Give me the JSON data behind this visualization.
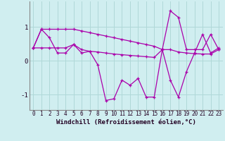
{
  "x": [
    0,
    1,
    2,
    3,
    4,
    5,
    6,
    7,
    8,
    9,
    10,
    11,
    12,
    13,
    14,
    15,
    16,
    17,
    18,
    19,
    20,
    21,
    22,
    23
  ],
  "line1": [
    0.38,
    0.38,
    0.38,
    0.38,
    0.38,
    0.48,
    0.33,
    0.28,
    0.26,
    0.23,
    0.2,
    0.18,
    0.16,
    0.14,
    0.12,
    0.1,
    0.33,
    0.33,
    0.26,
    0.23,
    0.21,
    0.2,
    0.2,
    0.33
  ],
  "line2": [
    0.38,
    0.93,
    0.68,
    0.23,
    0.23,
    0.48,
    0.23,
    0.28,
    -0.12,
    -1.17,
    -1.12,
    -0.57,
    -0.72,
    -0.52,
    -1.07,
    -1.07,
    0.33,
    -0.57,
    -1.07,
    -0.32,
    0.23,
    0.78,
    0.23,
    0.38
  ],
  "line3": [
    0.38,
    0.93,
    0.93,
    0.93,
    0.93,
    0.93,
    0.88,
    0.83,
    0.78,
    0.73,
    0.68,
    0.63,
    0.58,
    0.53,
    0.48,
    0.43,
    0.33,
    1.47,
    1.28,
    0.33,
    0.33,
    0.33,
    0.78,
    0.33
  ],
  "color": "#aa00aa",
  "bg_color": "#d0eef0",
  "xlabel": "Windchill (Refroidissement éolien,°C)",
  "xlim": [
    -0.5,
    23.5
  ],
  "ylim": [
    -1.45,
    1.75
  ],
  "yticks": [
    -1,
    0,
    1
  ],
  "xticks": [
    0,
    1,
    2,
    3,
    4,
    5,
    6,
    7,
    8,
    9,
    10,
    11,
    12,
    13,
    14,
    15,
    16,
    17,
    18,
    19,
    20,
    21,
    22,
    23
  ],
  "grid_color": "#b0d8d8",
  "xlabel_fontsize": 6.5,
  "tick_fontsize": 5.5,
  "ytick_fontsize": 6.5
}
